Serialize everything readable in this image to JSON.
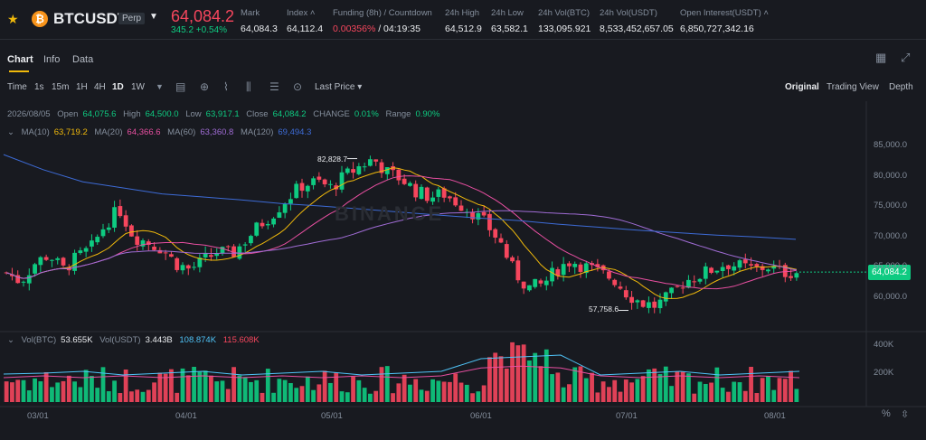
{
  "header": {
    "symbol": "BTCUSDT",
    "badge": "Perp",
    "last_price": "64,084.2",
    "change": "345.2 +0.54%",
    "stats": [
      {
        "label": "Mark",
        "value": "64,084.3"
      },
      {
        "label": "Index",
        "value": "64,112.4"
      },
      {
        "label": "Funding (8h) / Countdown",
        "value_a": "0.00356%",
        "value_b": " / 04:19:35"
      },
      {
        "label": "24h High",
        "value": "64,512.9"
      },
      {
        "label": "24h Low",
        "value": "63,582.1"
      },
      {
        "label": "24h Vol(BTC)",
        "value": "133,095.921"
      },
      {
        "label": "24h Vol(USDT)",
        "value": "8,533,452,657.05"
      },
      {
        "label": "Open Interest(USDT)",
        "value": "6,850,727,342.16"
      }
    ]
  },
  "tabs": {
    "chart": "Chart",
    "info": "Info",
    "data": "Data"
  },
  "toolbar": {
    "intervals": [
      "Time",
      "1s",
      "15m",
      "1H",
      "4H",
      "1D",
      "1W"
    ],
    "active_interval": "1D",
    "price_type": "Last Price",
    "views": [
      "Original",
      "Trading View",
      "Depth"
    ],
    "active_view": "Original"
  },
  "ohlc": {
    "date": "2026/08/05",
    "open_label": "Open",
    "open": "64,075.6",
    "high_label": "High",
    "high": "64,500.0",
    "low_label": "Low",
    "low": "63,917.1",
    "close_label": "Close",
    "close": "64,084.2",
    "change_label": "CHANGE",
    "change": "0.01%",
    "range_label": "Range",
    "range": "0.90%"
  },
  "ma": {
    "ma10_label": "MA(10)",
    "ma10": "63,719.2",
    "ma20_label": "MA(20)",
    "ma20": "64,366.6",
    "ma60_label": "MA(60)",
    "ma60": "63,360.8",
    "ma120_label": "MA(120)",
    "ma120": "69,494.3"
  },
  "volume": {
    "vol_btc_label": "Vol(BTC)",
    "vol_btc": "53.655K",
    "vol_usdt_label": "Vol(USDT)",
    "vol_usdt": "3.443B",
    "ma1": "108.874K",
    "ma2": "115.608K"
  },
  "price_tag": "64,084.2",
  "annotations": {
    "high": "82,828.7",
    "low": "57,758.6"
  },
  "watermark": "BINANCE",
  "colors": {
    "up": "#0ecb81",
    "down": "#f6465d",
    "ma10": "#f0b90b",
    "ma20": "#e84fa1",
    "ma60": "#a06cd5",
    "ma120": "#3d6bd6"
  },
  "chart_data": {
    "type": "candlestick",
    "y_ticks": [
      "85,000.0",
      "80,000.0",
      "75,000.0",
      "70,000.0",
      "65,000.0",
      "60,000.0"
    ],
    "ylim": [
      54000,
      88500
    ],
    "x_ticks": [
      "03/01",
      "04/01",
      "05/01",
      "06/01",
      "07/01",
      "08/01"
    ],
    "vol_ticks": [
      "400K",
      "200K"
    ],
    "vol_max": 520,
    "close_path": [
      64000,
      62500,
      65500,
      67000,
      64500,
      66500,
      68000,
      72000,
      74500,
      70000,
      69000,
      68000,
      65500,
      64500,
      66000,
      67500,
      67000,
      69500,
      72000,
      74000,
      76500,
      78500,
      79000,
      78000,
      80000,
      81500,
      82800,
      80500,
      79500,
      77500,
      76500,
      77000,
      75500,
      74000,
      72000,
      69000,
      64000,
      61500,
      62000,
      64500,
      66000,
      65000,
      64000,
      63000,
      60500,
      59000,
      58500,
      60000,
      62500,
      63500,
      64500,
      65500,
      65000,
      64500,
      65000,
      64000,
      64100
    ],
    "ma120_path": [
      83500,
      81000,
      79000,
      78000,
      77000,
      76500,
      76000,
      75400,
      75000,
      74500,
      74000,
      73500,
      73000,
      72600,
      72000,
      71500,
      71000,
      70600,
      70200,
      69900,
      69500
    ]
  }
}
